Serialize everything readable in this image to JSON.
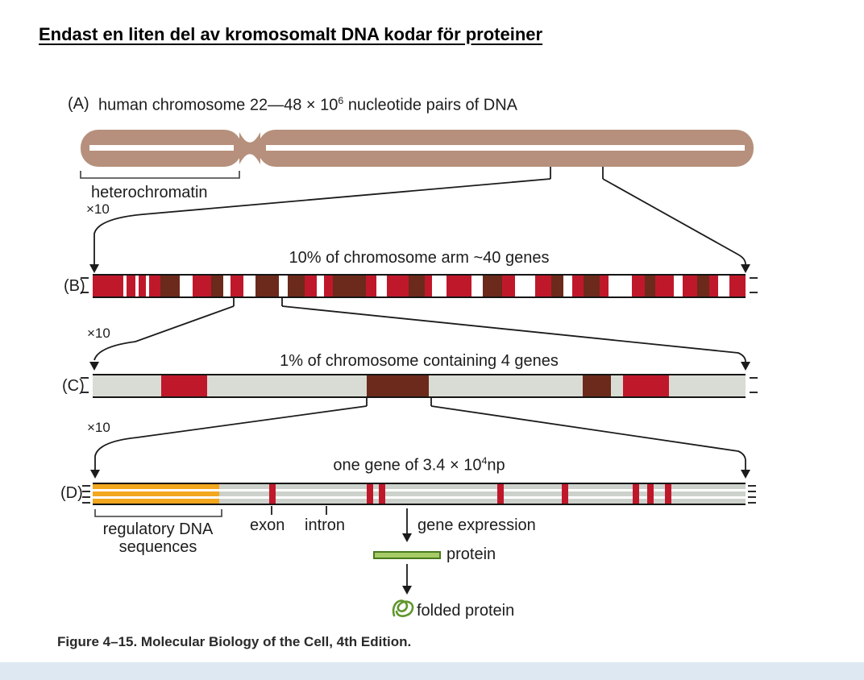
{
  "slide": {
    "title": "Endast en liten del av kromosomalt DNA kodar för proteiner",
    "caption": "Figure 4–15. Molecular Biology of the Cell, 4th Edition."
  },
  "colors": {
    "chromosome": "#b6907c",
    "r": "#c0182b",
    "br": "#6b2a1b",
    "w": "#ffffff",
    "g": "#d8dcd4",
    "orange": "#f2a71e",
    "protein_fill": "#a6cb66",
    "protein_border": "#4a7a1e",
    "squiggle": "#60962c",
    "line": "#1b1b1b"
  },
  "panelA": {
    "label": "(A)",
    "title_prefix": "human chromosome 22—48 × 10",
    "title_sup": "6",
    "title_suffix": " nucleotide pairs of DNA",
    "heterochromatin": "heterochromatin",
    "zoom": "×10"
  },
  "panelB": {
    "label": "(B)",
    "title": "10% of chromosome arm ~40 genes",
    "zoom": "×10",
    "segments": [
      [
        "r",
        34
      ],
      [
        "w",
        4
      ],
      [
        "r",
        9
      ],
      [
        "w",
        4
      ],
      [
        "r",
        8
      ],
      [
        "w",
        4
      ],
      [
        "r",
        12
      ],
      [
        "br",
        22
      ],
      [
        "w",
        14
      ],
      [
        "r",
        21
      ],
      [
        "br",
        13
      ],
      [
        "w",
        8
      ],
      [
        "r",
        14
      ],
      [
        "w",
        14
      ],
      [
        "br",
        26
      ],
      [
        "w",
        10
      ],
      [
        "br",
        18
      ],
      [
        "r",
        14
      ],
      [
        "w",
        8
      ],
      [
        "r",
        10
      ],
      [
        "br",
        36
      ],
      [
        "r",
        12
      ],
      [
        "w",
        12
      ],
      [
        "r",
        24
      ],
      [
        "br",
        18
      ],
      [
        "r",
        8
      ],
      [
        "w",
        16
      ],
      [
        "r",
        28
      ],
      [
        "w",
        12
      ],
      [
        "br",
        22
      ],
      [
        "r",
        14
      ],
      [
        "w",
        22
      ],
      [
        "r",
        18
      ],
      [
        "br",
        14
      ],
      [
        "w",
        10
      ],
      [
        "r",
        12
      ],
      [
        "br",
        18
      ],
      [
        "r",
        10
      ],
      [
        "w",
        26
      ],
      [
        "r",
        14
      ],
      [
        "br",
        12
      ],
      [
        "r",
        20
      ],
      [
        "w",
        10
      ],
      [
        "r",
        16
      ],
      [
        "br",
        14
      ],
      [
        "r",
        10
      ],
      [
        "w",
        12
      ],
      [
        "r",
        18
      ]
    ]
  },
  "panelC": {
    "label": "(C)",
    "title": "1% of chromosome containing 4 genes",
    "zoom": "×10",
    "segments": [
      [
        "g",
        85
      ],
      [
        "r",
        57
      ],
      [
        "g",
        198
      ],
      [
        "br",
        77
      ],
      [
        "g",
        191
      ],
      [
        "br",
        35
      ],
      [
        "g",
        15
      ],
      [
        "r",
        57
      ],
      [
        "g",
        95
      ]
    ]
  },
  "panelD": {
    "label": "(D)",
    "title_prefix": "one gene of 3.4 × 10",
    "title_sup": "4",
    "title_suffix": "np",
    "regulatory_line1": "regulatory DNA",
    "regulatory_line2": "sequences",
    "exon": "exon",
    "intron": "intron",
    "gene_expression": "gene expression",
    "protein": "protein",
    "folded_protein": "folded protein",
    "regulatory_width": 157,
    "exon_width": 8,
    "exon_offsets": [
      219,
      340,
      355,
      502,
      582,
      670,
      688,
      710
    ]
  }
}
